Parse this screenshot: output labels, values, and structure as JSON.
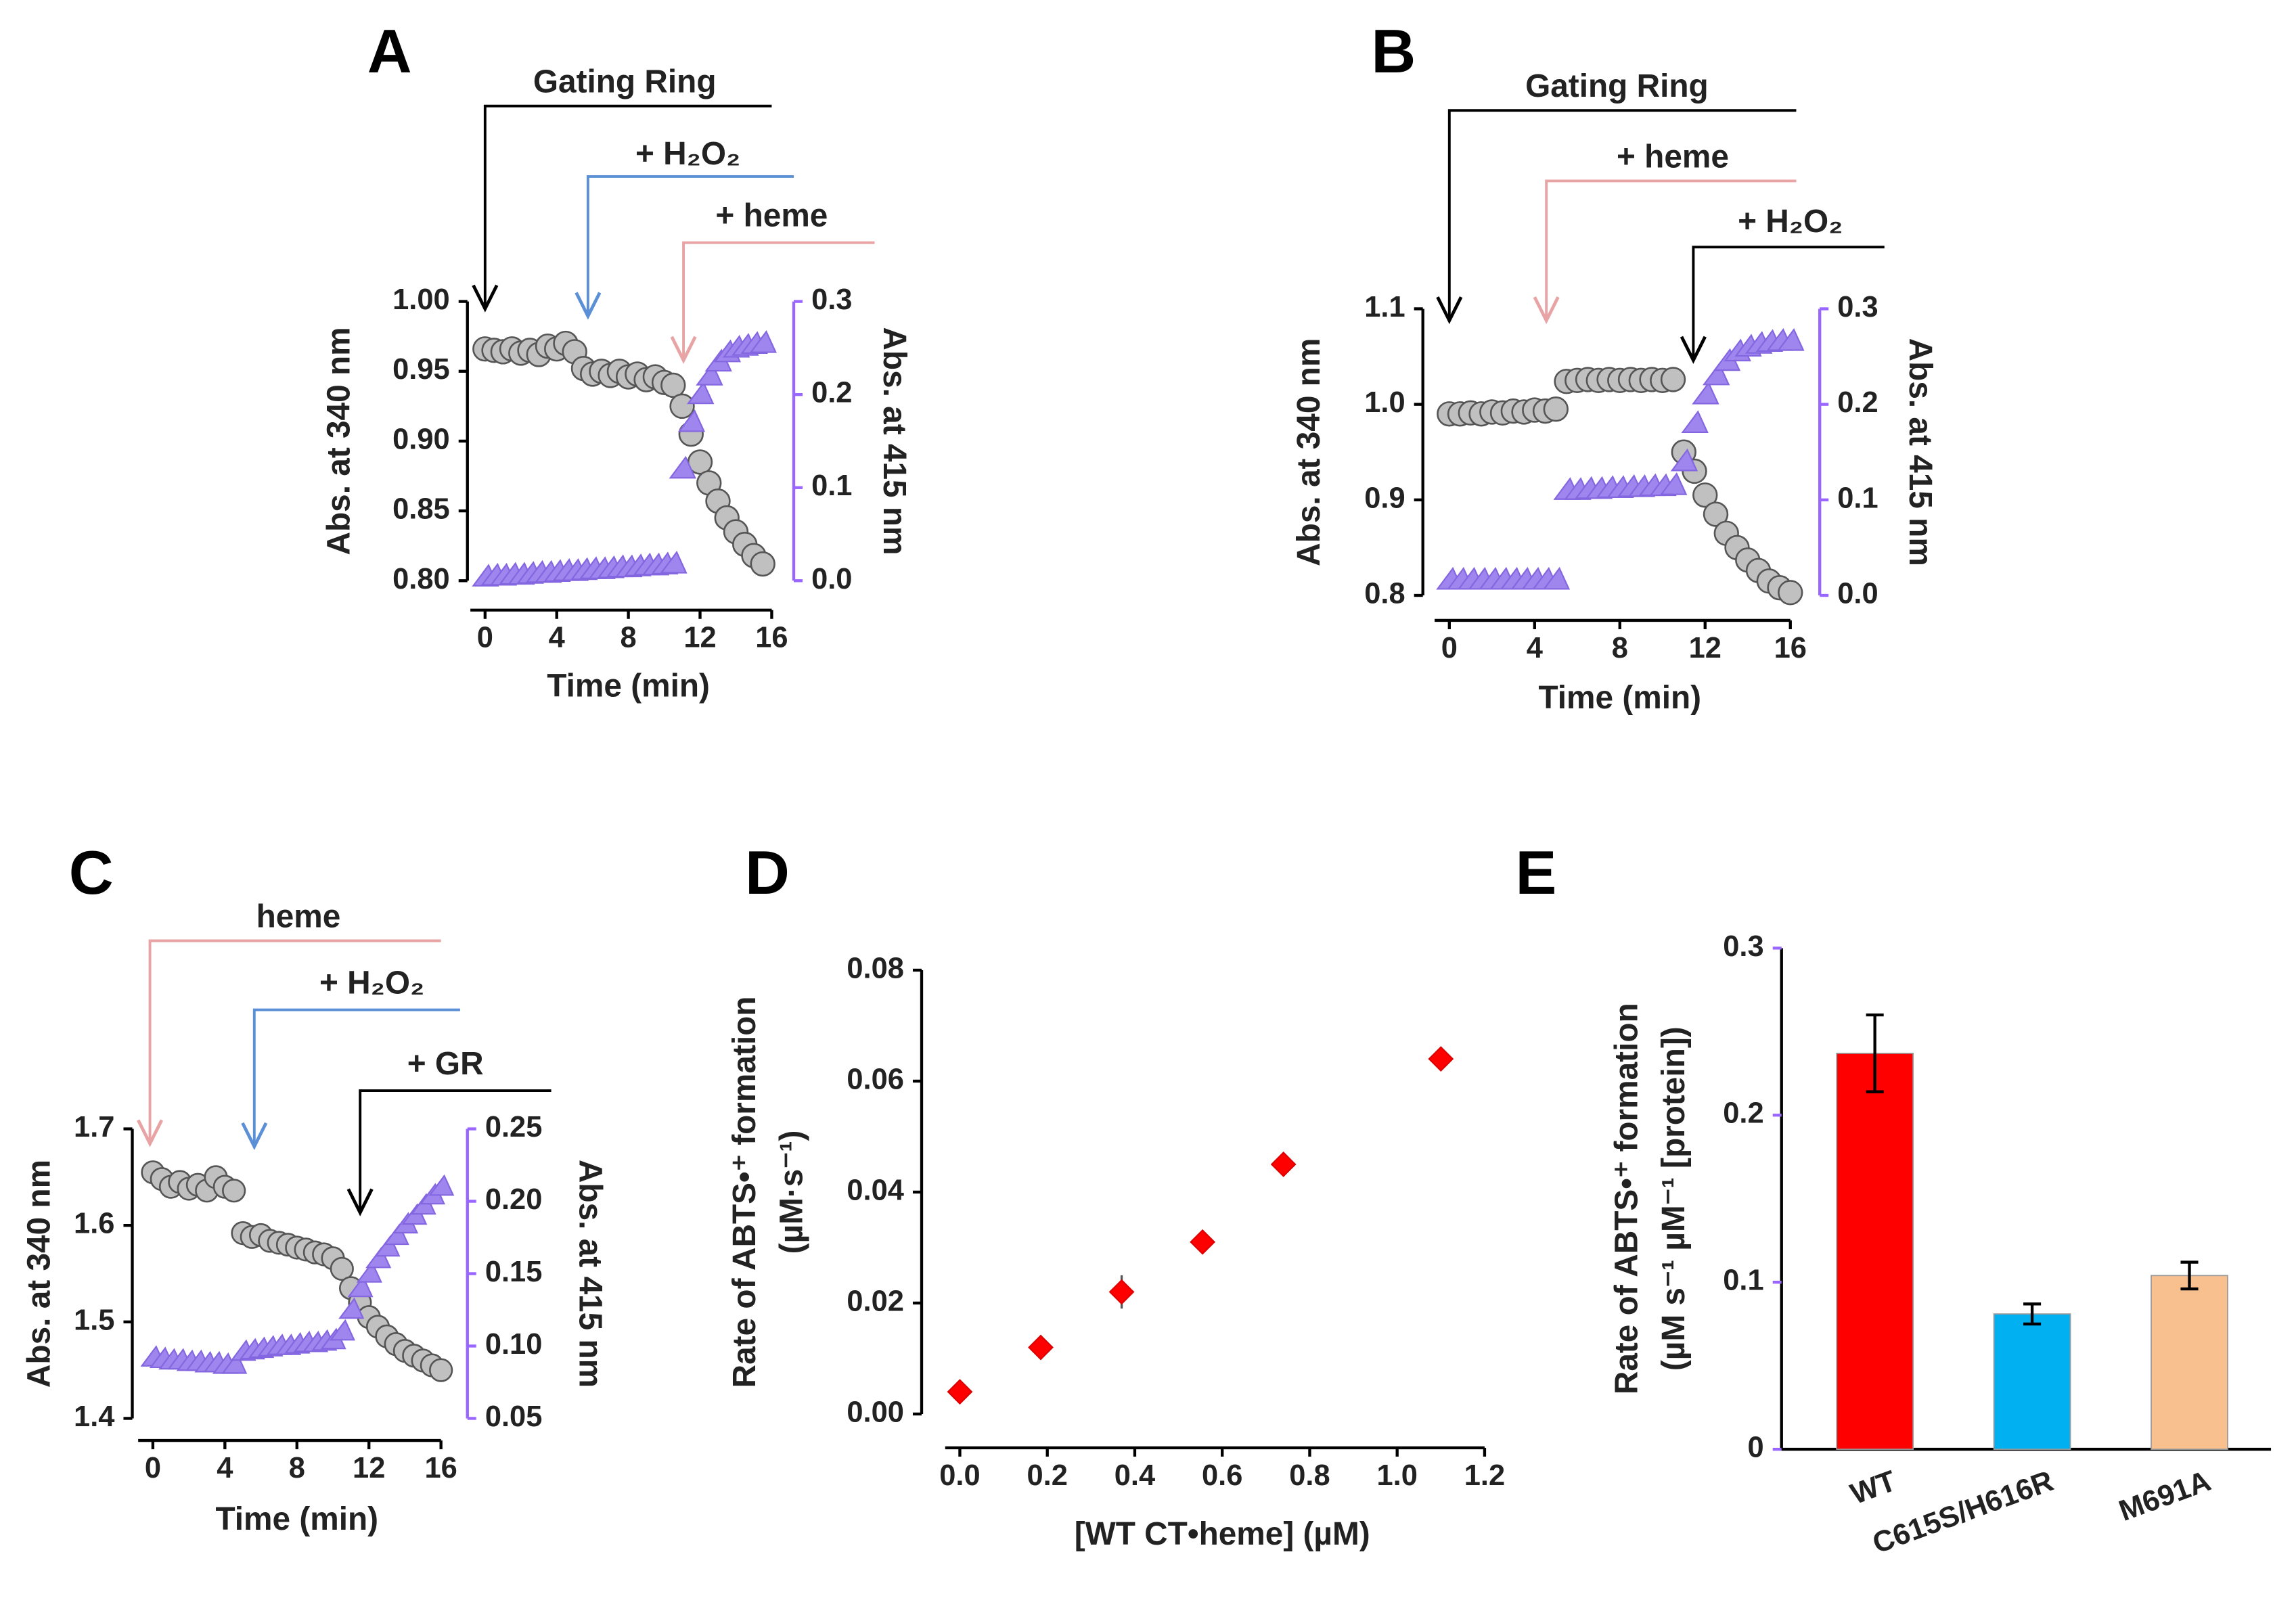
{
  "chart_data": [
    {
      "type": "scatter",
      "title": "A",
      "annotations": [
        {
          "text": "Gating Ring",
          "color": "#000000"
        },
        {
          "text": "+ H₂O₂",
          "color": "#5b8fd6"
        },
        {
          "text": "+ heme",
          "color": "#e8a4a4"
        }
      ],
      "xlabel": "Time (min)",
      "ylabel": "Abs. at 340 nm",
      "y2label": "Abs. at 415 nm",
      "y2color": "#9966ff",
      "x": [
        0,
        0.5,
        1,
        1.5,
        2,
        2.5,
        3,
        3.5,
        4,
        4.5,
        5,
        5.5,
        6,
        6.5,
        7,
        7.5,
        8,
        8.5,
        9,
        9.5,
        10,
        10.5,
        11,
        11.5,
        12,
        12.5,
        13,
        13.5,
        14,
        14.5,
        15,
        15.5
      ],
      "xlim": [
        0,
        16
      ],
      "xticks": [
        0,
        4,
        8,
        12,
        16
      ],
      "ylim": [
        0.8,
        1.0
      ],
      "yticks": [
        {
          "value": 0.8,
          "label": "0.80"
        },
        0.85,
        {
          "value": 0.9,
          "label": "0.90"
        },
        0.95,
        {
          "value": 1.0,
          "label": "1.00"
        }
      ],
      "y2lim": [
        0,
        0.3
      ],
      "y2ticks": [
        {
          "value": 0,
          "label": "0.0"
        },
        0.1,
        0.2,
        0.3
      ],
      "series": [
        {
          "color": "#c0c0c0",
          "marker": "circle",
          "values": [
            0.966,
            0.965,
            0.964,
            0.966,
            0.963,
            0.965,
            0.962,
            0.968,
            0.966,
            0.97,
            0.964,
            0.952,
            0.948,
            0.95,
            0.947,
            0.95,
            0.946,
            0.948,
            0.944,
            0.946,
            0.942,
            0.94,
            0.925,
            0.905,
            0.885,
            0.87,
            0.857,
            0.845,
            0.835,
            0.826,
            0.818,
            0.812
          ]
        },
        {
          "color": "#9f85ee",
          "marker": "triangle",
          "axis": "y2",
          "values": [
            0.004,
            0.005,
            0.005,
            0.006,
            0.006,
            0.007,
            0.008,
            0.008,
            0.009,
            0.01,
            0.01,
            0.011,
            0.012,
            0.012,
            0.013,
            0.014,
            0.014,
            0.015,
            0.016,
            0.016,
            0.017,
            0.018,
            0.12,
            0.17,
            0.2,
            0.22,
            0.235,
            0.245,
            0.25,
            0.252,
            0.254,
            0.255
          ]
        }
      ]
    },
    {
      "type": "scatter",
      "title": "B",
      "annotations": [
        {
          "text": "Gating Ring",
          "color": "#000000"
        },
        {
          "text": "+ heme",
          "color": "#e8a4a4"
        },
        {
          "text": "+ H₂O₂",
          "color": "#000000"
        }
      ],
      "xlabel": "Time (min)",
      "ylabel": "Abs. at 340 nm",
      "y2label": "Abs. at 415 nm",
      "y2color": "#9966ff",
      "x": [
        0,
        0.5,
        1,
        1.5,
        2,
        2.5,
        3,
        3.5,
        4,
        4.5,
        5,
        5.5,
        6,
        6.5,
        7,
        7.5,
        8,
        8.5,
        9,
        9.5,
        10,
        10.5,
        11,
        11.5,
        12,
        12.5,
        13,
        13.5,
        14,
        14.5,
        15,
        15.5,
        16
      ],
      "xlim": [
        0,
        16
      ],
      "xticks": [
        0,
        4,
        8,
        12,
        16
      ],
      "ylim": [
        0.8,
        1.1
      ],
      "yticks": [
        0.8,
        0.9,
        {
          "value": 1.0,
          "label": "1.0"
        },
        1.1
      ],
      "y2lim": [
        0,
        0.3
      ],
      "y2ticks": [
        {
          "value": 0,
          "label": "0.0"
        },
        0.1,
        0.2,
        0.3
      ],
      "series": [
        {
          "color": "#c0c0c0",
          "marker": "circle",
          "values": [
            0.99,
            0.99,
            0.991,
            0.99,
            0.992,
            0.991,
            0.993,
            0.992,
            0.994,
            0.993,
            0.995,
            1.024,
            1.025,
            1.026,
            1.025,
            1.026,
            1.025,
            1.026,
            1.025,
            1.026,
            1.025,
            1.026,
            0.95,
            0.93,
            0.905,
            0.885,
            0.865,
            0.85,
            0.837,
            0.826,
            0.815,
            0.808,
            0.803
          ]
        },
        {
          "color": "#9f85ee",
          "marker": "triangle",
          "axis": "y2",
          "values": [
            0.016,
            0.016,
            0.016,
            0.016,
            0.016,
            0.016,
            0.016,
            0.016,
            0.016,
            0.016,
            0.016,
            0.11,
            0.11,
            0.111,
            0.111,
            0.112,
            0.112,
            0.113,
            0.113,
            0.114,
            0.114,
            0.115,
            0.14,
            0.18,
            0.21,
            0.23,
            0.245,
            0.255,
            0.26,
            0.263,
            0.265,
            0.266,
            0.266
          ]
        }
      ]
    },
    {
      "type": "scatter",
      "title": "C",
      "annotations": [
        {
          "text": "heme",
          "color": "#e8a4a4"
        },
        {
          "text": "+ H₂O₂",
          "color": "#5b8fd6"
        },
        {
          "text": "+ GR",
          "color": "#000000"
        }
      ],
      "xlabel": "Time (min)",
      "ylabel": "Abs. at 340 nm",
      "y2label": "Abs. at 415 nm",
      "y2color": "#9966ff",
      "x": [
        0,
        0.5,
        1,
        1.5,
        2,
        2.5,
        3,
        3.5,
        4,
        4.5,
        5,
        5.5,
        6,
        6.5,
        7,
        7.5,
        8,
        8.5,
        9,
        9.5,
        10,
        10.5,
        11,
        11.5,
        12,
        12.5,
        13,
        13.5,
        14,
        14.5,
        15,
        15.5,
        16
      ],
      "xlim": [
        0,
        16
      ],
      "xticks": [
        0,
        4,
        8,
        12,
        16
      ],
      "ylim": [
        1.4,
        1.7
      ],
      "yticks": [
        1.4,
        1.5,
        1.6,
        1.7
      ],
      "y2lim": [
        0.05,
        0.25
      ],
      "y2ticks": [
        0.05,
        {
          "value": 0.1,
          "label": "0.10"
        },
        0.15,
        {
          "value": 0.2,
          "label": "0.20"
        },
        0.25
      ],
      "series": [
        {
          "color": "#c0c0c0",
          "marker": "circle",
          "values": [
            1.655,
            1.648,
            1.64,
            1.645,
            1.638,
            1.642,
            1.636,
            1.65,
            1.64,
            1.636,
            1.592,
            1.588,
            1.59,
            1.584,
            1.582,
            1.58,
            1.577,
            1.575,
            1.572,
            1.57,
            1.566,
            1.555,
            1.535,
            1.52,
            1.505,
            1.495,
            1.485,
            1.477,
            1.47,
            1.465,
            1.46,
            1.455,
            1.45
          ]
        },
        {
          "color": "#9f85ee",
          "marker": "triangle",
          "axis": "y2",
          "values": [
            0.092,
            0.091,
            0.09,
            0.09,
            0.089,
            0.089,
            0.088,
            0.088,
            0.087,
            0.087,
            0.096,
            0.097,
            0.098,
            0.099,
            0.1,
            0.1,
            0.101,
            0.102,
            0.102,
            0.103,
            0.104,
            0.11,
            0.125,
            0.14,
            0.15,
            0.16,
            0.168,
            0.176,
            0.184,
            0.19,
            0.197,
            0.204,
            0.21
          ]
        }
      ]
    },
    {
      "type": "scatter",
      "title": "D",
      "xlabel": "[WT CT•heme] (µM)",
      "ylabel": [
        "Rate of ABTS•⁺ formation",
        "(µM·s⁻¹)"
      ],
      "x": [
        0,
        0.185,
        0.37,
        0.555,
        0.74,
        1.1
      ],
      "xlim": [
        0,
        1.2
      ],
      "xticks": [
        {
          "value": 0,
          "label": "0.0"
        },
        0.2,
        0.4,
        0.6,
        0.8,
        {
          "value": 1.0,
          "label": "1.0"
        },
        1.2
      ],
      "ylim": [
        0,
        0.08
      ],
      "yticks": [
        {
          "value": 0,
          "label": "0.00"
        },
        0.02,
        0.04,
        0.06,
        0.08
      ],
      "series": [
        {
          "color": "#ff0000",
          "marker": "diamond",
          "values": [
            0.004,
            0.012,
            0.022,
            0.031,
            0.045,
            0.064
          ],
          "errors": [
            0,
            0,
            0.003,
            0,
            0,
            0
          ]
        }
      ]
    },
    {
      "type": "bar",
      "title": "E",
      "ylabel": [
        "Rate of ABTS•⁺ formation",
        "(µM s⁻¹ µM⁻¹ [protein])"
      ],
      "categories": [
        "WT",
        "C615S/H616R",
        "M691A"
      ],
      "values": [
        0.237,
        0.081,
        0.104
      ],
      "errors": [
        0.023,
        0.006,
        0.008
      ],
      "colors": [
        "#ff0000",
        "#00b0f0",
        "#f8c08f"
      ],
      "ylim": [
        0,
        0.3
      ],
      "yticks": [
        0,
        0.1,
        0.2,
        0.3
      ]
    }
  ]
}
